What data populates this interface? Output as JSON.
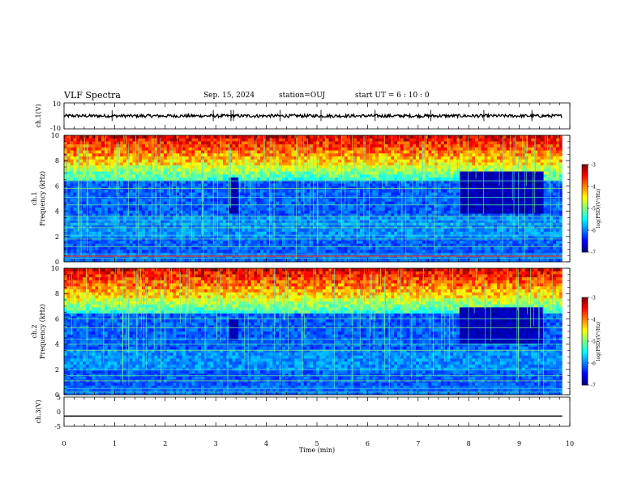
{
  "header": {
    "title": "VLF Spectra",
    "date": "Sep. 15, 2024",
    "station": "station=OUJ",
    "start": "start  UT =   6  : 10 : 0"
  },
  "chart_data": [
    {
      "type": "line",
      "name": "ch1-waveform",
      "ylabel": "ch.1(V)",
      "ylim": [
        -10,
        10
      ],
      "yticks": [
        "10",
        "-10"
      ],
      "xlim": [
        0,
        10
      ],
      "color": "#000000",
      "baseline": 0,
      "amplitude": 1.2,
      "spikes_min": [
        0.95,
        2.95,
        3.3,
        3.35,
        4.27,
        5.08,
        6.15,
        7.25,
        8.3,
        9.25
      ]
    },
    {
      "type": "heatmap",
      "name": "ch1-spectrogram",
      "ylabel": "ch.1\nFrequency  (kHz)",
      "ylim": [
        0,
        10
      ],
      "yticks": [
        "0",
        "2",
        "4",
        "6",
        "8",
        "10"
      ],
      "xlim": [
        0,
        9.85
      ],
      "colorbar": {
        "label": "log(PSD)(V²/Hz)",
        "range": [
          -7,
          -3
        ],
        "ticks": [
          "-3",
          "-4",
          "-5",
          "-6",
          "-7"
        ]
      },
      "quiet_regions": [
        {
          "x": [
            3.25,
            3.45
          ],
          "f": [
            3.8,
            6.6
          ]
        },
        {
          "x": [
            7.8,
            9.5
          ],
          "f": [
            3.8,
            7.2
          ]
        }
      ],
      "lines_khz": [
        0.3,
        0.6,
        1.2,
        1.8,
        2.1,
        2.7,
        3.0,
        3.3,
        3.6,
        4.5,
        5.1,
        5.8,
        6.4
      ]
    },
    {
      "type": "heatmap",
      "name": "ch2-spectrogram",
      "ylabel": "ch.2\nFrequency  (kHz)",
      "ylim": [
        0,
        10
      ],
      "yticks": [
        "0",
        "2",
        "4",
        "6",
        "8",
        "10"
      ],
      "xlim": [
        0,
        9.85
      ],
      "colorbar": {
        "label": "log(PSD)(V²/Hz)",
        "range": [
          -7,
          -3
        ],
        "ticks": [
          "-3",
          "-4",
          "-5",
          "-6",
          "-7"
        ]
      },
      "quiet_regions": [
        {
          "x": [
            3.25,
            3.45
          ],
          "f": [
            4.2,
            6.0
          ]
        },
        {
          "x": [
            7.8,
            9.5
          ],
          "f": [
            4.0,
            6.8
          ]
        }
      ],
      "lines_khz": [
        0.2,
        0.5,
        1.1,
        1.5,
        2.0,
        3.5,
        4.0,
        4.4,
        5.3,
        6.0
      ]
    },
    {
      "type": "line",
      "name": "ch3-waveform",
      "ylabel": "ch.3(V)",
      "ylim": [
        -5,
        5
      ],
      "yticks": [
        "5",
        "0",
        "-5"
      ],
      "xlim": [
        0,
        10
      ],
      "color": "#000000",
      "value": -1.5
    }
  ],
  "xaxis": {
    "label": "Time  (min)",
    "ticks": [
      "0",
      "1",
      "2",
      "3",
      "4",
      "5",
      "6",
      "7",
      "8",
      "9",
      "10"
    ]
  }
}
